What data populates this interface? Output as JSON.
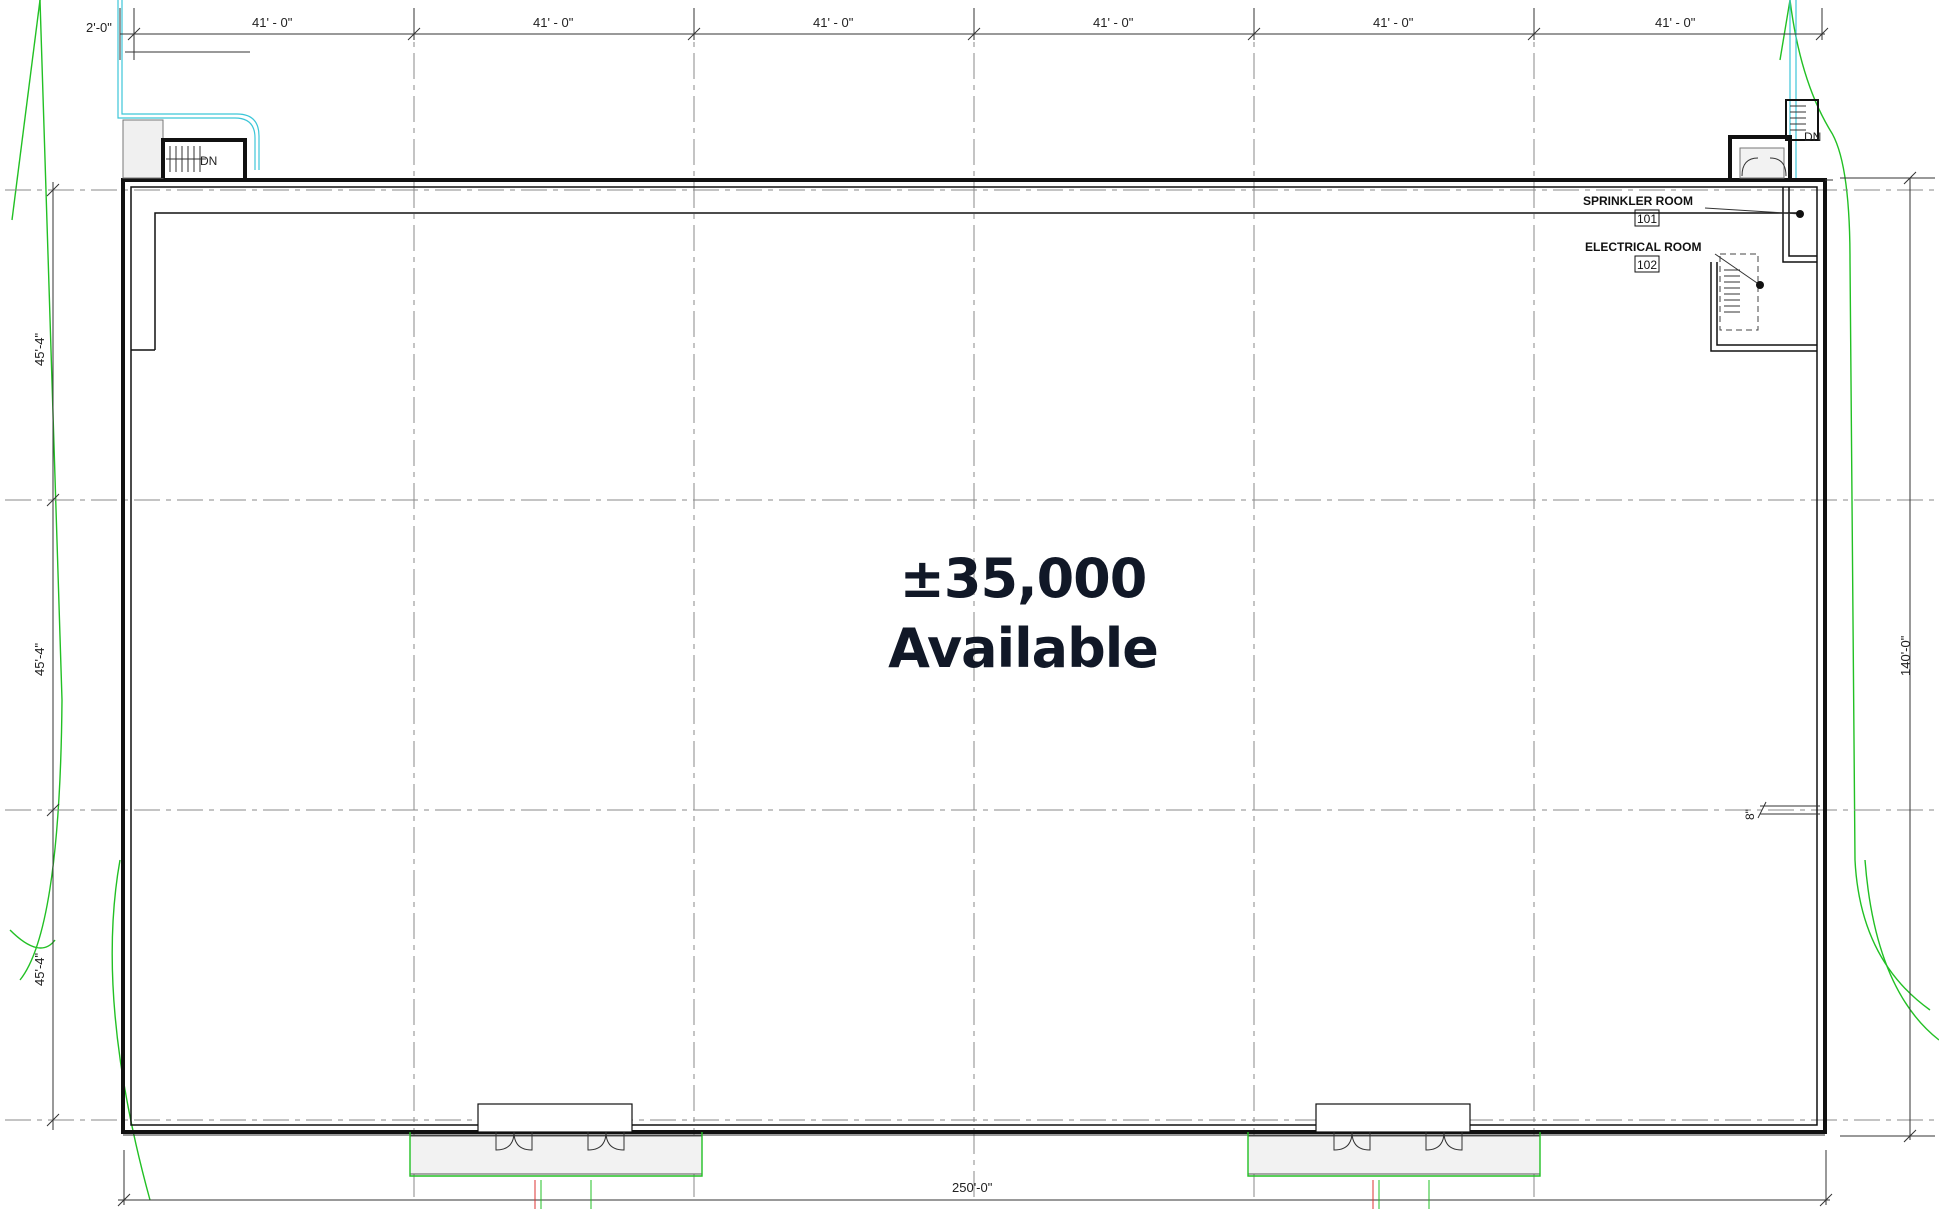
{
  "top_dimensions": [
    "2'-0\"",
    "41' - 0\"",
    "41' - 0\"",
    "41' - 0\"",
    "41' - 0\"",
    "41' - 0\"",
    "41' - 0\""
  ],
  "left_dimensions": [
    "45'-4\"",
    "45'-4\"",
    "45'-4\""
  ],
  "right_dimension": "140'-0\"",
  "bottom_dimension": "250'-0\"",
  "small_dimension": "8\"",
  "stair_labels": [
    "DN",
    "DN"
  ],
  "rooms": [
    {
      "name": "SPRINKLER ROOM",
      "number": "101"
    },
    {
      "name": "ELECTRICAL ROOM",
      "number": "102"
    }
  ],
  "headline": {
    "area": "±35,000",
    "status": "Available"
  }
}
